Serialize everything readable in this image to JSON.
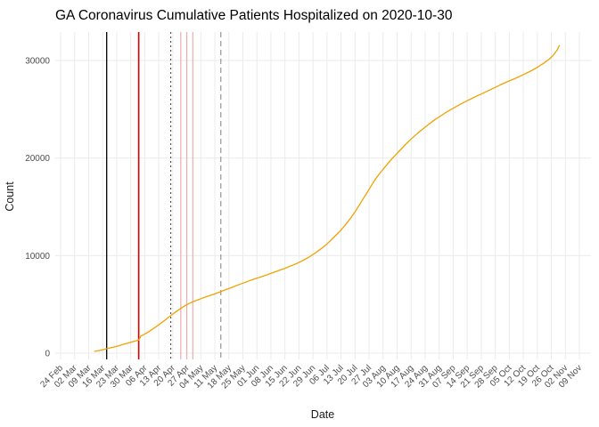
{
  "chart_data": {
    "type": "line",
    "title": "GA Coronavirus Cumulative Patients Hospitalized on 2020-10-30",
    "xlabel": "Date",
    "ylabel": "Count",
    "x_domain": [
      "2020-02-24",
      "2020-11-09"
    ],
    "ylim": [
      0,
      30000
    ],
    "y_ticks": [
      {
        "value": 0,
        "label": "0"
      },
      {
        "value": 10000,
        "label": "10000"
      },
      {
        "value": 20000,
        "label": "20000"
      },
      {
        "value": 30000,
        "label": "30000"
      }
    ],
    "x_ticks": [
      {
        "date": "2020-02-24",
        "label": "24 Feb"
      },
      {
        "date": "2020-03-02",
        "label": "02 Mar"
      },
      {
        "date": "2020-03-09",
        "label": "09 Mar"
      },
      {
        "date": "2020-03-16",
        "label": "16 Mar"
      },
      {
        "date": "2020-03-23",
        "label": "23 Mar"
      },
      {
        "date": "2020-03-30",
        "label": "30 Mar"
      },
      {
        "date": "2020-04-06",
        "label": "06 Apr"
      },
      {
        "date": "2020-04-13",
        "label": "13 Apr"
      },
      {
        "date": "2020-04-20",
        "label": "20 Apr"
      },
      {
        "date": "2020-04-27",
        "label": "27 Apr"
      },
      {
        "date": "2020-05-04",
        "label": "04 May"
      },
      {
        "date": "2020-05-11",
        "label": "11 May"
      },
      {
        "date": "2020-05-18",
        "label": "18 May"
      },
      {
        "date": "2020-05-25",
        "label": "25 May"
      },
      {
        "date": "2020-06-01",
        "label": "01 Jun"
      },
      {
        "date": "2020-06-08",
        "label": "08 Jun"
      },
      {
        "date": "2020-06-15",
        "label": "15 Jun"
      },
      {
        "date": "2020-06-22",
        "label": "22 Jun"
      },
      {
        "date": "2020-06-29",
        "label": "29 Jun"
      },
      {
        "date": "2020-07-06",
        "label": "06 Jul"
      },
      {
        "date": "2020-07-13",
        "label": "13 Jul"
      },
      {
        "date": "2020-07-20",
        "label": "20 Jul"
      },
      {
        "date": "2020-07-27",
        "label": "27 Jul"
      },
      {
        "date": "2020-08-03",
        "label": "03 Aug"
      },
      {
        "date": "2020-08-10",
        "label": "10 Aug"
      },
      {
        "date": "2020-08-17",
        "label": "17 Aug"
      },
      {
        "date": "2020-08-24",
        "label": "24 Aug"
      },
      {
        "date": "2020-08-31",
        "label": "31 Aug"
      },
      {
        "date": "2020-09-07",
        "label": "07 Sep"
      },
      {
        "date": "2020-09-14",
        "label": "14 Sep"
      },
      {
        "date": "2020-09-21",
        "label": "21 Sep"
      },
      {
        "date": "2020-09-28",
        "label": "28 Sep"
      },
      {
        "date": "2020-10-05",
        "label": "05 Oct"
      },
      {
        "date": "2020-10-12",
        "label": "12 Oct"
      },
      {
        "date": "2020-10-19",
        "label": "19 Oct"
      },
      {
        "date": "2020-10-26",
        "label": "26 Oct"
      },
      {
        "date": "2020-11-02",
        "label": "02 Nov"
      },
      {
        "date": "2020-11-09",
        "label": "09 Nov"
      }
    ],
    "grid": {
      "show": true,
      "color": "#EBEBEB"
    },
    "legend": "none",
    "vlines": [
      {
        "date": "2020-03-18",
        "color": "#000000",
        "style": "solid",
        "width": 1.3
      },
      {
        "date": "2020-04-03",
        "color": "#DE0000",
        "style": "solid",
        "width": 1.6
      },
      {
        "date": "2020-04-19",
        "color": "#4A4A4A",
        "style": "dotted",
        "width": 1.1
      },
      {
        "date": "2020-04-24",
        "color": "#EFACAC",
        "style": "solid",
        "width": 1.2
      },
      {
        "date": "2020-04-27",
        "color": "#EFACAC",
        "style": "solid",
        "width": 1.2
      },
      {
        "date": "2020-04-30",
        "color": "#EFACAC",
        "style": "solid",
        "width": 1.2
      },
      {
        "date": "2020-05-14",
        "color": "#8C8C8C",
        "style": "dashed",
        "width": 1.1
      }
    ],
    "series": [
      {
        "name": "Cumulative patients hospitalized",
        "color": "#F0A202",
        "points": [
          [
            "2020-03-12",
            180
          ],
          [
            "2020-03-14",
            260
          ],
          [
            "2020-03-16",
            350
          ],
          [
            "2020-03-18",
            460
          ],
          [
            "2020-03-20",
            560
          ],
          [
            "2020-03-22",
            650
          ],
          [
            "2020-03-24",
            760
          ],
          [
            "2020-03-26",
            880
          ],
          [
            "2020-03-28",
            1000
          ],
          [
            "2020-03-30",
            1110
          ],
          [
            "2020-04-01",
            1230
          ],
          [
            "2020-04-03",
            1340
          ],
          [
            "2020-04-04",
            1750
          ],
          [
            "2020-04-06",
            1950
          ],
          [
            "2020-04-08",
            2200
          ],
          [
            "2020-04-10",
            2480
          ],
          [
            "2020-04-12",
            2760
          ],
          [
            "2020-04-14",
            3060
          ],
          [
            "2020-04-16",
            3360
          ],
          [
            "2020-04-18",
            3700
          ],
          [
            "2020-04-20",
            4000
          ],
          [
            "2020-04-22",
            4300
          ],
          [
            "2020-04-24",
            4590
          ],
          [
            "2020-04-26",
            4850
          ],
          [
            "2020-04-28",
            5080
          ],
          [
            "2020-04-30",
            5270
          ],
          [
            "2020-05-02",
            5430
          ],
          [
            "2020-05-04",
            5580
          ],
          [
            "2020-05-07",
            5800
          ],
          [
            "2020-05-10",
            6010
          ],
          [
            "2020-05-13",
            6240
          ],
          [
            "2020-05-16",
            6470
          ],
          [
            "2020-05-19",
            6700
          ],
          [
            "2020-05-22",
            6950
          ],
          [
            "2020-05-25",
            7180
          ],
          [
            "2020-05-28",
            7400
          ],
          [
            "2020-05-31",
            7620
          ],
          [
            "2020-06-03",
            7820
          ],
          [
            "2020-06-06",
            8030
          ],
          [
            "2020-06-09",
            8250
          ],
          [
            "2020-06-12",
            8480
          ],
          [
            "2020-06-15",
            8700
          ],
          [
            "2020-06-18",
            8950
          ],
          [
            "2020-06-21",
            9200
          ],
          [
            "2020-06-24",
            9500
          ],
          [
            "2020-06-27",
            9850
          ],
          [
            "2020-06-30",
            10250
          ],
          [
            "2020-07-03",
            10700
          ],
          [
            "2020-07-06",
            11200
          ],
          [
            "2020-07-09",
            11800
          ],
          [
            "2020-07-12",
            12400
          ],
          [
            "2020-07-15",
            13100
          ],
          [
            "2020-07-18",
            13900
          ],
          [
            "2020-07-21",
            14800
          ],
          [
            "2020-07-24",
            15800
          ],
          [
            "2020-07-27",
            16800
          ],
          [
            "2020-07-30",
            17800
          ],
          [
            "2020-08-02",
            18600
          ],
          [
            "2020-08-05",
            19350
          ],
          [
            "2020-08-08",
            20050
          ],
          [
            "2020-08-11",
            20700
          ],
          [
            "2020-08-14",
            21350
          ],
          [
            "2020-08-17",
            21950
          ],
          [
            "2020-08-20",
            22500
          ],
          [
            "2020-08-23",
            23000
          ],
          [
            "2020-08-26",
            23500
          ],
          [
            "2020-08-29",
            23950
          ],
          [
            "2020-09-01",
            24350
          ],
          [
            "2020-09-04",
            24750
          ],
          [
            "2020-09-07",
            25100
          ],
          [
            "2020-09-10",
            25450
          ],
          [
            "2020-09-13",
            25780
          ],
          [
            "2020-09-16",
            26080
          ],
          [
            "2020-09-19",
            26380
          ],
          [
            "2020-09-22",
            26650
          ],
          [
            "2020-09-25",
            26950
          ],
          [
            "2020-09-28",
            27250
          ],
          [
            "2020-10-01",
            27550
          ],
          [
            "2020-10-04",
            27820
          ],
          [
            "2020-10-07",
            28080
          ],
          [
            "2020-10-10",
            28350
          ],
          [
            "2020-10-13",
            28650
          ],
          [
            "2020-10-16",
            28950
          ],
          [
            "2020-10-19",
            29300
          ],
          [
            "2020-10-22",
            29700
          ],
          [
            "2020-10-25",
            30150
          ],
          [
            "2020-10-27",
            30550
          ],
          [
            "2020-10-29",
            31100
          ],
          [
            "2020-10-30",
            31530
          ]
        ]
      }
    ]
  }
}
